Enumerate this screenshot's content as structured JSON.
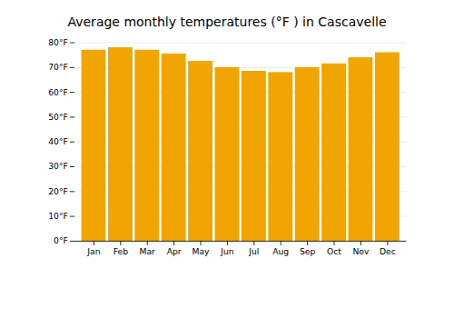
{
  "chart_data": {
    "type": "bar",
    "title": "Average monthly temperatures (°F ) in Cascavelle",
    "categories": [
      "Jan",
      "Feb",
      "Mar",
      "Apr",
      "May",
      "Jun",
      "Jul",
      "Aug",
      "Sep",
      "Oct",
      "Nov",
      "Dec"
    ],
    "values": [
      77.0,
      78.0,
      77.0,
      75.5,
      72.5,
      70.0,
      68.5,
      68.0,
      70.0,
      71.5,
      74.0,
      76.0
    ],
    "color": "#F0A500",
    "ylim": [
      0,
      80
    ],
    "yticks": [
      {
        "value": 0,
        "label": "0°F"
      },
      {
        "value": 10,
        "label": "10°F"
      },
      {
        "value": 20,
        "label": "20°F"
      },
      {
        "value": 30,
        "label": "30°F"
      },
      {
        "value": 40,
        "label": "40°F"
      },
      {
        "value": 50,
        "label": "50°F"
      },
      {
        "value": 60,
        "label": "60°F"
      },
      {
        "value": 70,
        "label": "70°F"
      },
      {
        "value": 80,
        "label": "80°F"
      }
    ],
    "grid": true
  }
}
